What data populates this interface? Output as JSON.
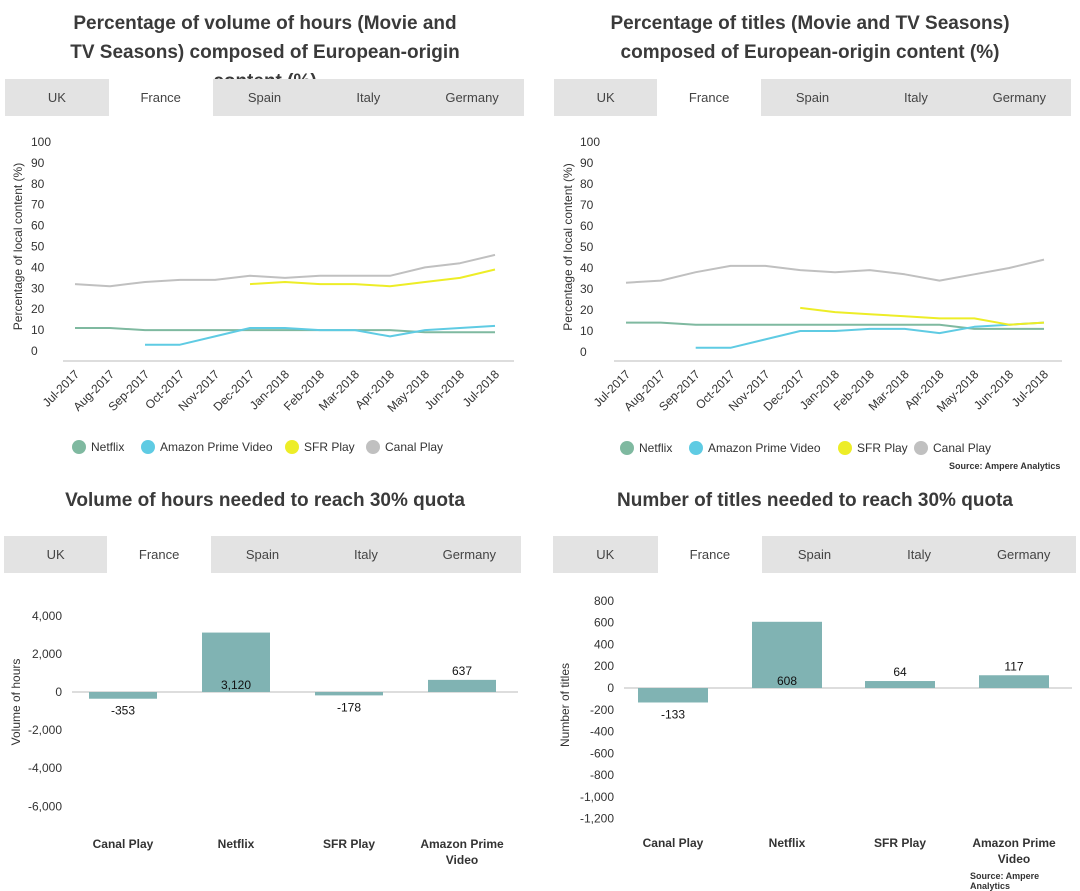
{
  "tabs": [
    "UK",
    "France",
    "Spain",
    "Italy",
    "Germany"
  ],
  "active_tab": 1,
  "source_text": "Source: Ampere Analytics",
  "colors": {
    "Netflix": "#7fb9a0",
    "Amazon Prime Video": "#5fcbe3",
    "SFR Play": "#eded27",
    "Canal Play": "#c0c0c0",
    "bar": "#80b3b3",
    "tab_bg": "#e3e3e3",
    "tab_active": "#ffffff"
  },
  "chart_data": [
    {
      "id": "hours-line",
      "type": "line",
      "title": "Percentage of volume of hours (Movie and TV Seasons) composed of European-origin content (%)",
      "ylabel": "Percentage of local content (%)",
      "ylim": [
        0,
        100
      ],
      "yticks": [
        0,
        10,
        20,
        30,
        40,
        50,
        60,
        70,
        80,
        90,
        100
      ],
      "categories": [
        "Jul-2017",
        "Aug-2017",
        "Sep-2017",
        "Oct-2017",
        "Nov-2017",
        "Dec-2017",
        "Jan-2018",
        "Feb-2018",
        "Mar-2018",
        "Apr-2018",
        "May-2018",
        "Jun-2018",
        "Jul-2018"
      ],
      "series": [
        {
          "name": "Netflix",
          "values": [
            11,
            11,
            10,
            10,
            10,
            10,
            10,
            10,
            10,
            10,
            9,
            9,
            9
          ]
        },
        {
          "name": "Amazon Prime Video",
          "values": [
            null,
            null,
            3,
            3,
            7,
            11,
            11,
            10,
            10,
            7,
            10,
            11,
            12
          ]
        },
        {
          "name": "SFR Play",
          "values": [
            null,
            null,
            null,
            null,
            null,
            32,
            33,
            32,
            32,
            31,
            33,
            35,
            39
          ]
        },
        {
          "name": "Canal Play",
          "values": [
            32,
            31,
            33,
            34,
            34,
            36,
            35,
            36,
            36,
            36,
            40,
            42,
            46
          ]
        }
      ],
      "legend_position": "bottom"
    },
    {
      "id": "titles-line",
      "type": "line",
      "title": "Percentage of titles (Movie and TV Seasons) composed of European-origin content (%)",
      "ylabel": "Percentage of local content (%)",
      "ylim": [
        0,
        100
      ],
      "yticks": [
        0,
        10,
        20,
        30,
        40,
        50,
        60,
        70,
        80,
        90,
        100
      ],
      "categories": [
        "Jul-2017",
        "Aug-2017",
        "Sep-2017",
        "Oct-2017",
        "Nov-2017",
        "Dec-2017",
        "Jan-2018",
        "Feb-2018",
        "Mar-2018",
        "Apr-2018",
        "May-2018",
        "Jun-2018",
        "Jul-2018"
      ],
      "series": [
        {
          "name": "Netflix",
          "values": [
            14,
            14,
            13,
            13,
            13,
            13,
            13,
            13,
            13,
            13,
            11,
            11,
            11
          ]
        },
        {
          "name": "Amazon Prime Video",
          "values": [
            null,
            null,
            2,
            2,
            6,
            10,
            10,
            11,
            11,
            9,
            12,
            13,
            14
          ]
        },
        {
          "name": "SFR Play",
          "values": [
            null,
            null,
            null,
            null,
            null,
            21,
            19,
            18,
            17,
            16,
            16,
            13,
            14
          ]
        },
        {
          "name": "Canal Play",
          "values": [
            33,
            34,
            38,
            41,
            41,
            39,
            38,
            39,
            37,
            34,
            37,
            40,
            44
          ]
        }
      ],
      "legend_position": "bottom"
    },
    {
      "id": "hours-bar",
      "type": "bar",
      "title": "Volume of hours needed to reach 30% quota",
      "ylabel": "Volume of hours",
      "ylim": [
        -7000,
        4700
      ],
      "yticks": [
        -6000,
        -4000,
        -2000,
        0,
        2000,
        4000
      ],
      "yticklabels": [
        "-6,000",
        "-4,000",
        "-2,000",
        "0",
        "2,000",
        "4,000"
      ],
      "categories": [
        "Canal Play",
        "Netflix",
        "SFR Play",
        "Amazon Prime Video"
      ],
      "values": [
        -353,
        3120,
        -178,
        637
      ],
      "data_labels": [
        "-353",
        "3,120",
        "-178",
        "637"
      ]
    },
    {
      "id": "titles-bar",
      "type": "bar",
      "title": "Number of titles needed to reach 30% quota",
      "ylabel": "Number of titles",
      "ylim": [
        -1300,
        900
      ],
      "yticks": [
        -1200,
        -1000,
        -800,
        -600,
        -400,
        -200,
        0,
        200,
        400,
        600,
        800
      ],
      "yticklabels": [
        "-1,200",
        "-1,000",
        "-800",
        "-600",
        "-400",
        "-200",
        "0",
        "200",
        "400",
        "600",
        "800"
      ],
      "categories": [
        "Canal Play",
        "Netflix",
        "SFR Play",
        "Amazon Prime Video"
      ],
      "values": [
        -133,
        608,
        64,
        117
      ],
      "data_labels": [
        "-133",
        "608",
        "64",
        "117"
      ]
    }
  ]
}
